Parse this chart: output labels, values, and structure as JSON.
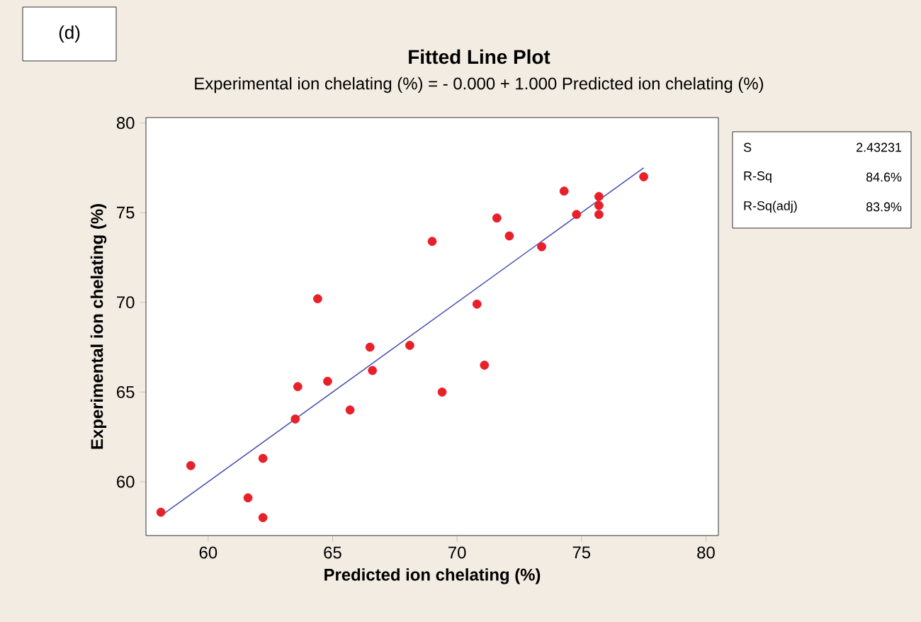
{
  "chart_data": {
    "type": "scatter",
    "title": "Fitted Line Plot",
    "subtitle": "Experimental ion chelating (%) =  - 0.000 + 1.000 Predicted ion chelating (%)",
    "xlabel": "Predicted ion chelating (%)",
    "ylabel": "Experimental ion chelating (%)",
    "annotations": [
      "(d)",
      "S",
      "2.43231",
      "R-Sq",
      "84.6%",
      "R-Sq(adj)",
      "83.9%"
    ],
    "xlim": [
      57.5,
      80.5
    ],
    "ylim": [
      57,
      80.3
    ],
    "xticks": [
      60,
      65,
      70,
      75,
      80
    ],
    "yticks": [
      60,
      65,
      70,
      75,
      80
    ],
    "grid": false,
    "series": [
      {
        "marker": "circle",
        "color": "#e8202a",
        "x": [
          58.1,
          59.3,
          61.6,
          62.2,
          62.2,
          63.5,
          63.6,
          64.4,
          64.8,
          65.7,
          66.5,
          66.6,
          68.1,
          69.0,
          69.4,
          70.8,
          71.1,
          71.6,
          72.1,
          73.4,
          74.3,
          74.8,
          75.7,
          75.7,
          75.7,
          77.5
        ],
        "values": [
          58.3,
          60.9,
          59.1,
          58.0,
          61.3,
          63.5,
          65.3,
          70.2,
          65.6,
          64.0,
          67.5,
          66.2,
          67.6,
          73.4,
          65.0,
          69.9,
          66.5,
          74.7,
          73.7,
          73.1,
          76.2,
          74.9,
          75.9,
          75.4,
          74.9,
          77.0
        ]
      },
      {
        "type": "line",
        "marker": "none",
        "color": "#4a56b0",
        "line_style": "solid",
        "x": [
          58.1,
          77.5
        ],
        "values": [
          58.1,
          77.5
        ]
      }
    ]
  }
}
